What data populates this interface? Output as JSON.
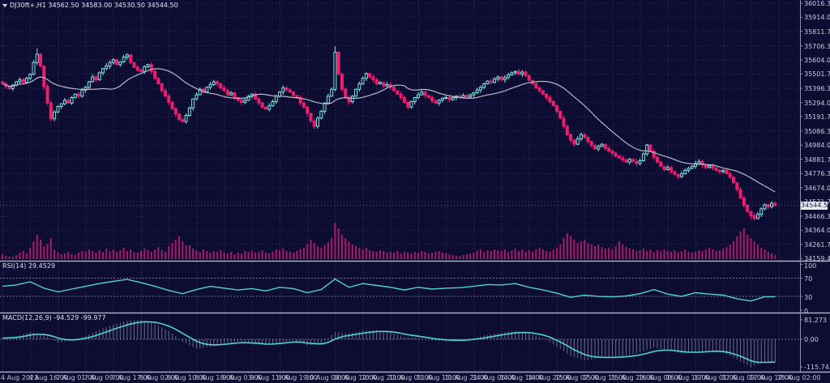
{
  "window": {
    "title": "DJ30ft+,H1 34562.50 34583.00 34530.50 34544.50",
    "symbol": "DJ30ft+",
    "timeframe": "H1",
    "open": "34562.50",
    "high": "34583.00",
    "low": "34530.50",
    "close": "34544.50"
  },
  "colors": {
    "background": "#0d0d33",
    "grid": "#33335f",
    "bull": "#7ce9dd",
    "bear": "#ef1d6d",
    "volume": "#a81b66",
    "ma_line": "#b9b9c9",
    "indicator_line": "#4fd4c8",
    "histogram": "#9aa0b8",
    "separator": "#a9a9bf",
    "axis_text": "#c9c9da",
    "price_tag_bg": "#ecedf2",
    "price_tag_text": "#12123d"
  },
  "chart_data": {
    "type": "candlestick",
    "title": "DJ30ft+ H1 price chart with volume, RSI and MACD",
    "x_labels": [
      "4 Aug 2023",
      "4 Aug 16:00",
      "7 Aug 01:00",
      "7 Aug 09:00",
      "7 Aug 17:00",
      "8 Aug 02:00",
      "8 Aug 10:00",
      "8 Aug 18:00",
      "9 Aug 03:00",
      "9 Aug 11:00",
      "9 Aug 19:00",
      "10 Aug 04:00",
      "10 Aug 12:00",
      "10 Aug 20:00",
      "11 Aug 05:00",
      "11 Aug 13:00",
      "11 Aug 21:00",
      "14 Aug 06:00",
      "14 Aug 14:00",
      "14 Aug 22:00",
      "15 Aug 07:00",
      "15 Aug 15:00",
      "15 Aug 23:00",
      "16 Aug 08:00",
      "16 Aug 16:00",
      "17 Aug 01:00",
      "17 Aug 09:00",
      "17 Aug 17:00",
      "18 Aug 02:00"
    ],
    "bars_per_label": 8,
    "price_axis": {
      "labels": [
        "36016.30",
        "35914.00",
        "35811.70",
        "35706.30",
        "35604.00",
        "35501.70",
        "35396.30",
        "35294.00",
        "35191.70",
        "35086.30",
        "34984.00",
        "34881.70",
        "34776.30",
        "34674.00",
        "34571.70",
        "34466.30",
        "34364.00",
        "34261.70",
        "34159.40"
      ],
      "current_price": 34544.5,
      "current_label": "34544.50",
      "range_top": 36040,
      "range_bottom": 34142
    },
    "candles": {
      "first_open": 35445,
      "closes": [
        35430,
        35410,
        35395,
        35420,
        35445,
        35460,
        35440,
        35470,
        35500,
        35585,
        35645,
        35560,
        35410,
        35290,
        35175,
        35225,
        35265,
        35285,
        35310,
        35290,
        35330,
        35355,
        35340,
        35385,
        35405,
        35445,
        35480,
        35460,
        35510,
        35540,
        35560,
        35585,
        35605,
        35570,
        35590,
        35625,
        35640,
        35585,
        35550,
        35530,
        35520,
        35555,
        35570,
        35520,
        35470,
        35430,
        35380,
        35340,
        35295,
        35250,
        35210,
        35170,
        35155,
        35200,
        35255,
        35320,
        35350,
        35390,
        35370,
        35405,
        35425,
        35445,
        35430,
        35400,
        35380,
        35350,
        35365,
        35330,
        35310,
        35295,
        35310,
        35340,
        35355,
        35320,
        35290,
        35260,
        35245,
        35270,
        35300,
        35340,
        35370,
        35400,
        35385,
        35370,
        35345,
        35330,
        35290,
        35260,
        35215,
        35160,
        35120,
        35180,
        35230,
        35290,
        35340,
        35390,
        35660,
        35500,
        35390,
        35330,
        35300,
        35340,
        35390,
        35430,
        35470,
        35505,
        35480,
        35460,
        35430,
        35440,
        35415,
        35425,
        35405,
        35380,
        35355,
        35330,
        35295,
        35260,
        35300,
        35330,
        35350,
        35370,
        35345,
        35330,
        35305,
        35290,
        35310,
        35325,
        35330,
        35315,
        35330,
        35340,
        35330,
        35345,
        35335,
        35350,
        35365,
        35385,
        35405,
        35430,
        35450,
        35440,
        35465,
        35480,
        35460,
        35475,
        35495,
        35510,
        35520,
        35500,
        35515,
        35490,
        35455,
        35430,
        35400,
        35380,
        35355,
        35330,
        35300,
        35270,
        35230,
        35180,
        35120,
        35060,
        35020,
        34990,
        35030,
        35060,
        35040,
        35010,
        34980,
        34955,
        34975,
        34990,
        34960,
        34940,
        34925,
        34905,
        34890,
        34875,
        34860,
        34880,
        34865,
        34850,
        34870,
        34920,
        34985,
        34940,
        34895,
        34860,
        34830,
        34805,
        34820,
        34790,
        34770,
        34755,
        34775,
        34800,
        34815,
        34830,
        34850,
        34865,
        34840,
        34820,
        34835,
        34815,
        34800,
        34790,
        34800,
        34775,
        34750,
        34710,
        34660,
        34600,
        34545,
        34500,
        34470,
        34450,
        34480,
        34520,
        34550,
        34535,
        34560,
        34544.5
      ]
    },
    "volumes": [
      6,
      4,
      3,
      3,
      5,
      8,
      10,
      7,
      14,
      22,
      30,
      24,
      16,
      19,
      26,
      12,
      8,
      6,
      7,
      9,
      6,
      5,
      8,
      10,
      9,
      12,
      10,
      8,
      11,
      9,
      13,
      10,
      12,
      9,
      11,
      14,
      10,
      12,
      9,
      8,
      10,
      13,
      11,
      9,
      12,
      15,
      11,
      9,
      16,
      20,
      24,
      28,
      22,
      17,
      17,
      13,
      11,
      9,
      12,
      10,
      8,
      10,
      9,
      11,
      8,
      7,
      9,
      6,
      8,
      7,
      10,
      9,
      10,
      8,
      9,
      11,
      8,
      7,
      9,
      12,
      11,
      13,
      10,
      9,
      8,
      10,
      12,
      14,
      18,
      24,
      20,
      16,
      14,
      17,
      21,
      26,
      45,
      38,
      30,
      26,
      22,
      18,
      16,
      14,
      12,
      14,
      11,
      10,
      9,
      11,
      10,
      8,
      9,
      8,
      10,
      7,
      9,
      8,
      7,
      9,
      8,
      10,
      9,
      7,
      8,
      9,
      10,
      8,
      7,
      6,
      5,
      4,
      4,
      5,
      6,
      7,
      8,
      10,
      12,
      9,
      11,
      10,
      12,
      11,
      10,
      12,
      9,
      11,
      13,
      10,
      12,
      9,
      11,
      9,
      12,
      14,
      12,
      10,
      9,
      12,
      14,
      18,
      26,
      32,
      28,
      24,
      20,
      22,
      24,
      20,
      18,
      16,
      18,
      15,
      13,
      14,
      12,
      16,
      22,
      18,
      15,
      13,
      12,
      10,
      11,
      13,
      10,
      12,
      9,
      11,
      10,
      12,
      10,
      9,
      11,
      8,
      10,
      12,
      9,
      8,
      9,
      11,
      10,
      12,
      14,
      12,
      10,
      11,
      13,
      15,
      18,
      22,
      28,
      34,
      38,
      30,
      26,
      22,
      18,
      14,
      12,
      9,
      7,
      5
    ],
    "moving_average": {
      "period": 21
    },
    "rsi": {
      "label": "RSI(14) 29.4529",
      "period": 14,
      "current": 29.4529,
      "axis_labels": [
        "100",
        "70",
        "30",
        "0"
      ],
      "levels": [
        70,
        30
      ],
      "points_step": 4,
      "values": [
        52,
        55,
        62,
        48,
        40,
        46,
        52,
        58,
        63,
        67,
        60,
        52,
        43,
        36,
        45,
        52,
        48,
        44,
        47,
        42,
        50,
        47,
        38,
        45,
        68,
        50,
        58,
        54,
        50,
        44,
        50,
        46,
        48,
        49,
        52,
        56,
        55,
        58,
        50,
        44,
        37,
        28,
        33,
        30,
        29,
        31,
        36,
        45,
        35,
        30,
        38,
        35,
        33,
        25,
        20,
        29.45
      ]
    },
    "macd": {
      "label": "MACD(12,26,9) -94.529 -99.977",
      "params": "12,26,9",
      "main_current": -94.529,
      "signal_current": -99.977,
      "axis_labels": [
        "81.273",
        "0.00",
        "-115.742"
      ],
      "axis_values": [
        81.273,
        0,
        -115.742
      ],
      "points_step": 4,
      "values": [
        5,
        12,
        30,
        18,
        -15,
        -5,
        15,
        40,
        62,
        78,
        81.27,
        65,
        35,
        -10,
        -40,
        -30,
        -15,
        -10,
        -18,
        -25,
        -12,
        -5,
        -25,
        -20,
        30,
        25,
        35,
        38,
        28,
        10,
        5,
        -5,
        -8,
        -5,
        5,
        18,
        28,
        35,
        25,
        5,
        -30,
        -70,
        -88,
        -80,
        -75,
        -70,
        -55,
        -35,
        -45,
        -60,
        -55,
        -45,
        -55,
        -85,
        -115.74,
        -94.53
      ]
    }
  }
}
